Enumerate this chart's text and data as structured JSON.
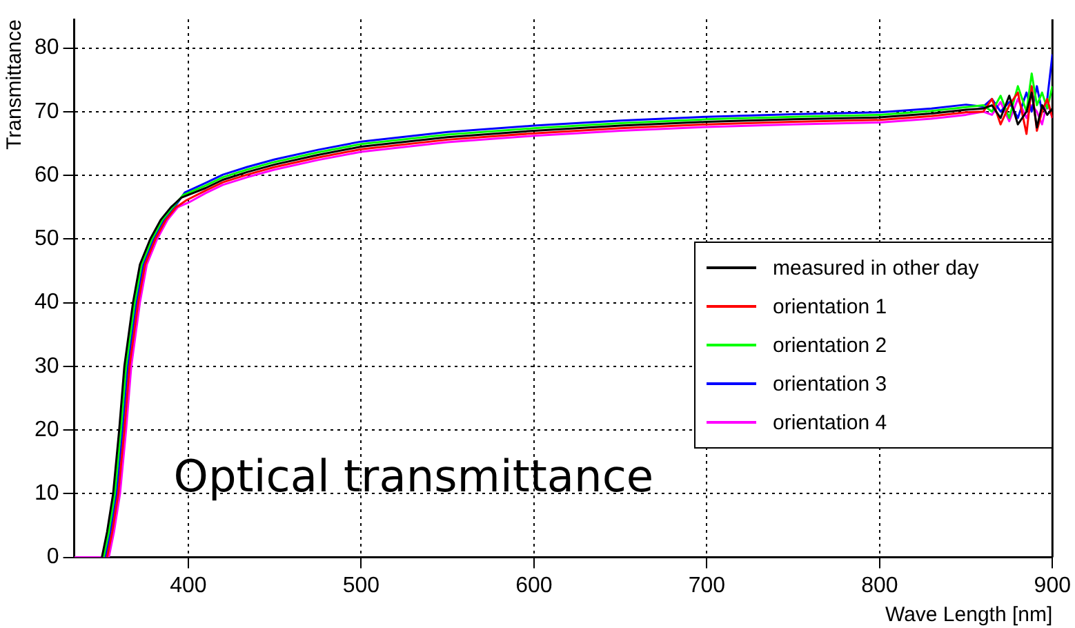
{
  "chart_data": {
    "type": "line",
    "xlabel": "Wave Length [nm]",
    "ylabel": "Transmittance",
    "annotations": [
      "Optical transmittance"
    ],
    "x": [
      334,
      350,
      354,
      357,
      360.5,
      364,
      367,
      370,
      372,
      376,
      382,
      388,
      394,
      400,
      410,
      420,
      434,
      450,
      475,
      500,
      550,
      600,
      650,
      700,
      750,
      800,
      830,
      850,
      860,
      865,
      870,
      875,
      880,
      885,
      888,
      891,
      894,
      897,
      900
    ],
    "xlim": [
      334,
      900
    ],
    "ylim": [
      0,
      84.5
    ],
    "xticks": [
      400,
      500,
      600,
      700,
      800,
      900
    ],
    "yticks": [
      0,
      10,
      20,
      30,
      40,
      50,
      60,
      70,
      80
    ],
    "grid": true,
    "legend": "right",
    "marker": "none",
    "line_style": "solid",
    "series": [
      {
        "name": "measured in other day",
        "color": "#000000",
        "x": [
          350,
          353,
          356.5,
          360,
          363,
          366,
          368,
          372,
          378,
          384,
          390,
          396,
          410,
          420,
          434,
          450,
          475,
          500,
          550,
          600,
          650,
          700,
          750,
          800,
          830,
          850,
          860,
          865,
          870,
          875,
          880,
          885,
          888,
          891,
          894,
          897,
          900
        ],
        "values": [
          0,
          4,
          10,
          20,
          30,
          36,
          40,
          46,
          50,
          53,
          55,
          56.5,
          58,
          59.3,
          60.5,
          61.7,
          63.2,
          64.5,
          66,
          67,
          67.8,
          68.4,
          68.8,
          69.1,
          69.7,
          70.3,
          70.5,
          71,
          69,
          72.5,
          68,
          70,
          73,
          67.5,
          71,
          69.5,
          70.5
        ]
      },
      {
        "name": "orientation 1",
        "color": "#ff0000",
        "x": [
          353,
          356,
          359.5,
          363,
          366,
          369,
          371,
          375,
          381,
          387,
          393,
          399,
          410,
          420,
          434,
          450,
          475,
          500,
          550,
          600,
          650,
          700,
          750,
          800,
          830,
          850,
          860,
          865,
          870,
          875,
          880,
          885,
          888,
          891,
          894,
          897,
          900
        ],
        "values": [
          0,
          4,
          10,
          20,
          30,
          36,
          40,
          46,
          50,
          53,
          55,
          56.1,
          57.6,
          58.9,
          60.1,
          61.3,
          62.8,
          64.1,
          65.6,
          66.6,
          67.4,
          68,
          68.4,
          68.7,
          69.3,
          69.9,
          70,
          72,
          68,
          71,
          73,
          66.5,
          74,
          67,
          70,
          72,
          69
        ]
      },
      {
        "name": "orientation 2",
        "color": "#00ff00",
        "x": [
          351,
          354,
          357.5,
          361,
          364,
          367,
          369,
          373,
          379,
          385,
          391,
          397,
          410,
          420,
          434,
          450,
          475,
          500,
          550,
          600,
          650,
          700,
          750,
          800,
          830,
          850,
          860,
          865,
          870,
          875,
          880,
          885,
          888,
          891,
          894,
          897,
          900
        ],
        "values": [
          0,
          4,
          10,
          20,
          30,
          36,
          40,
          46,
          50,
          53,
          55,
          56.9,
          58.4,
          59.7,
          60.9,
          62.1,
          63.6,
          64.9,
          66.4,
          67.4,
          68.2,
          68.8,
          69.2,
          69.5,
          70.1,
          70.7,
          71,
          70,
          72.5,
          69,
          74,
          70,
          76,
          71,
          73,
          70.5,
          74
        ]
      },
      {
        "name": "orientation 3",
        "color": "#0000ff",
        "x": [
          352,
          355,
          358.5,
          362,
          365,
          368,
          370,
          374,
          380,
          386,
          392,
          398,
          410,
          420,
          434,
          450,
          475,
          500,
          550,
          600,
          650,
          700,
          750,
          800,
          830,
          850,
          860,
          865,
          870,
          875,
          880,
          885,
          888,
          891,
          894,
          897,
          900
        ],
        "values": [
          0,
          4,
          10,
          20,
          30,
          36,
          40,
          46,
          50,
          53,
          55,
          57.3,
          58.8,
          60.1,
          61.3,
          62.5,
          64,
          65.3,
          66.8,
          67.8,
          68.6,
          69.2,
          69.6,
          69.9,
          70.5,
          71.1,
          70.8,
          72,
          70,
          71.5,
          69,
          73,
          70,
          74,
          70,
          72,
          79
        ]
      },
      {
        "name": "orientation 4",
        "color": "#ff00ff",
        "values": [
          0,
          0,
          0,
          4,
          10,
          20,
          30,
          36,
          40,
          46,
          50,
          53,
          55,
          55.7,
          57.2,
          58.5,
          59.7,
          60.9,
          62.4,
          63.7,
          65.2,
          66.2,
          67,
          67.6,
          68,
          68.3,
          68.9,
          69.5,
          70,
          69.5,
          71.5,
          68.5,
          72,
          69,
          71,
          70,
          68,
          71.5,
          69
        ]
      }
    ]
  }
}
